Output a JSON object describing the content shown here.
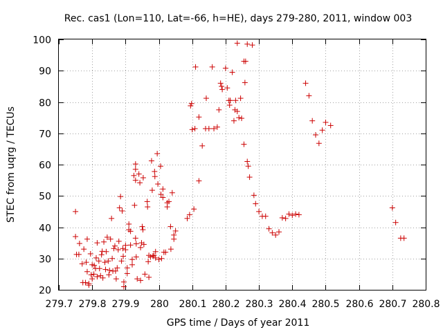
{
  "chart_data": {
    "type": "scatter",
    "title": "Rec. cas1 (Lon=110, Lat=-66, h=HE), days 279-280, 2011, window 003",
    "xlabel": "GPS time / Days of year 2011",
    "ylabel": "STEC from uqrg / TECUs",
    "xlim": [
      279.7,
      280.8
    ],
    "ylim": [
      20,
      100
    ],
    "xticks": [
      "279.7",
      "279.8",
      "279.9",
      "280",
      "280.1",
      "280.2",
      "280.3",
      "280.4",
      "280.5",
      "280.6",
      "280.7",
      "280.8"
    ],
    "yticks": [
      "20",
      "30",
      "40",
      "50",
      "60",
      "70",
      "80",
      "90",
      "100"
    ],
    "grid": true,
    "grid_style": "dotted",
    "marker": "plus",
    "color": "#cc0000",
    "series": [
      {
        "points": [
          [
            279.75,
            45.0
          ],
          [
            279.75,
            37.0
          ],
          [
            279.753,
            31.3
          ],
          [
            279.76,
            31.3
          ],
          [
            279.762,
            34.8
          ],
          [
            279.77,
            28.3
          ],
          [
            279.772,
            22.3
          ],
          [
            279.775,
            33.0
          ],
          [
            279.78,
            22.3
          ],
          [
            279.782,
            28.8
          ],
          [
            279.785,
            25.8
          ],
          [
            279.785,
            36.2
          ],
          [
            279.79,
            22.0
          ],
          [
            279.79,
            21.5
          ],
          [
            279.795,
            31.5
          ],
          [
            279.797,
            24.8
          ],
          [
            279.8,
            23.5
          ],
          [
            279.8,
            28.0
          ],
          [
            279.805,
            25.0
          ],
          [
            279.806,
            27.8
          ],
          [
            279.81,
            26.8
          ],
          [
            279.812,
            30.2
          ],
          [
            279.815,
            24.2
          ],
          [
            279.815,
            35.0
          ],
          [
            279.82,
            29.2
          ],
          [
            279.822,
            26.8
          ],
          [
            279.825,
            24.5
          ],
          [
            279.828,
            31.2
          ],
          [
            279.83,
            32.3
          ],
          [
            279.832,
            23.8
          ],
          [
            279.835,
            35.3
          ],
          [
            279.838,
            28.8
          ],
          [
            279.84,
            26.5
          ],
          [
            279.842,
            32.2
          ],
          [
            279.845,
            36.8
          ],
          [
            279.848,
            29.2
          ],
          [
            279.85,
            24.8
          ],
          [
            279.852,
            26.2
          ],
          [
            279.855,
            36.2
          ],
          [
            279.858,
            42.8
          ],
          [
            279.86,
            30.0
          ],
          [
            279.862,
            26.0
          ],
          [
            279.865,
            33.2
          ],
          [
            279.868,
            34.0
          ],
          [
            279.87,
            26.0
          ],
          [
            279.872,
            23.5
          ],
          [
            279.875,
            27.0
          ],
          [
            279.878,
            32.8
          ],
          [
            279.88,
            35.5
          ],
          [
            279.882,
            46.2
          ],
          [
            279.885,
            49.8
          ],
          [
            279.888,
            29.2
          ],
          [
            279.89,
            45.2
          ],
          [
            279.892,
            33.2
          ],
          [
            279.893,
            30.7
          ],
          [
            279.895,
            22.5
          ],
          [
            279.895,
            21.0
          ],
          [
            279.9,
            34.2
          ],
          [
            279.9,
            32.8
          ],
          [
            279.905,
            27.0
          ],
          [
            279.905,
            25.2
          ],
          [
            279.91,
            41.0
          ],
          [
            279.91,
            39.2
          ],
          [
            279.915,
            38.7
          ],
          [
            279.915,
            34.3
          ],
          [
            279.92,
            29.7
          ],
          [
            279.92,
            28.0
          ],
          [
            279.925,
            56.5
          ],
          [
            279.927,
            47.0
          ],
          [
            279.93,
            60.2
          ],
          [
            279.93,
            58.5
          ],
          [
            279.93,
            55.0
          ],
          [
            279.93,
            36.5
          ],
          [
            279.932,
            34.7
          ],
          [
            279.932,
            30.5
          ],
          [
            279.935,
            23.5
          ],
          [
            279.94,
            57.0
          ],
          [
            279.943,
            54.2
          ],
          [
            279.945,
            33.5
          ],
          [
            279.945,
            23.0
          ],
          [
            279.948,
            35.0
          ],
          [
            279.95,
            40.2
          ],
          [
            279.952,
            39.2
          ],
          [
            279.953,
            55.8
          ],
          [
            279.955,
            34.5
          ],
          [
            279.958,
            25.0
          ],
          [
            279.965,
            48.2
          ],
          [
            279.966,
            46.5
          ],
          [
            279.968,
            29.0
          ],
          [
            279.97,
            24.0
          ],
          [
            279.97,
            31.0
          ],
          [
            279.975,
            30.5
          ],
          [
            279.978,
            61.2
          ],
          [
            279.98,
            51.8
          ],
          [
            279.982,
            30.8
          ],
          [
            279.985,
            31.0
          ],
          [
            279.987,
            57.8
          ],
          [
            279.988,
            56.2
          ],
          [
            279.99,
            32.2
          ],
          [
            279.99,
            30.2
          ],
          [
            279.995,
            63.5
          ],
          [
            279.997,
            53.8
          ],
          [
            280.0,
            29.7
          ],
          [
            280.005,
            59.5
          ],
          [
            280.006,
            50.5
          ],
          [
            280.008,
            30.0
          ],
          [
            280.012,
            52.2
          ],
          [
            280.012,
            49.5
          ],
          [
            280.015,
            32.0
          ],
          [
            280.02,
            32.0
          ],
          [
            280.025,
            47.8
          ],
          [
            280.025,
            46.5
          ],
          [
            280.03,
            48.2
          ],
          [
            280.035,
            40.2
          ],
          [
            280.036,
            33.0
          ],
          [
            280.04,
            51.0
          ],
          [
            280.045,
            37.5
          ],
          [
            280.045,
            36.2
          ],
          [
            280.05,
            38.8
          ],
          [
            280.085,
            42.8
          ],
          [
            280.092,
            44.0
          ],
          [
            280.095,
            78.8
          ],
          [
            280.098,
            79.5
          ],
          [
            280.1,
            71.2
          ],
          [
            280.105,
            45.8
          ],
          [
            280.108,
            71.5
          ],
          [
            280.11,
            91.2
          ],
          [
            280.12,
            75.2
          ],
          [
            280.12,
            54.8
          ],
          [
            280.13,
            66.0
          ],
          [
            280.14,
            71.5
          ],
          [
            280.142,
            81.2
          ],
          [
            280.15,
            71.5
          ],
          [
            280.16,
            91.2
          ],
          [
            280.165,
            71.5
          ],
          [
            280.175,
            72.0
          ],
          [
            280.18,
            77.5
          ],
          [
            280.185,
            86.0
          ],
          [
            280.188,
            85.0
          ],
          [
            280.19,
            84.0
          ],
          [
            280.2,
            90.8
          ],
          [
            280.205,
            84.5
          ],
          [
            280.21,
            80.5
          ],
          [
            280.212,
            79.0
          ],
          [
            280.214,
            80.5
          ],
          [
            280.22,
            89.5
          ],
          [
            280.225,
            74.0
          ],
          [
            280.228,
            77.5
          ],
          [
            280.235,
            77.0
          ],
          [
            280.24,
            75.0
          ],
          [
            280.245,
            81.2
          ],
          [
            280.248,
            74.8
          ],
          [
            280.255,
            66.5
          ],
          [
            280.258,
            86.2
          ],
          [
            280.26,
            93.0
          ],
          [
            280.265,
            61.0
          ],
          [
            280.268,
            59.5
          ],
          [
            280.272,
            56.0
          ],
          [
            280.28,
            98.2
          ],
          [
            280.285,
            50.2
          ],
          [
            280.29,
            47.5
          ],
          [
            280.3,
            45.0
          ],
          [
            280.31,
            43.5
          ],
          [
            280.32,
            43.5
          ],
          [
            280.33,
            39.5
          ],
          [
            280.34,
            38.2
          ],
          [
            280.35,
            37.5
          ],
          [
            280.36,
            38.5
          ],
          [
            280.37,
            43.0
          ],
          [
            280.38,
            42.8
          ],
          [
            280.39,
            44.2
          ],
          [
            280.4,
            43.8
          ],
          [
            280.41,
            44.2
          ],
          [
            280.42,
            44.0
          ],
          [
            280.44,
            86.0
          ],
          [
            280.45,
            82.0
          ],
          [
            280.46,
            74.0
          ],
          [
            280.47,
            69.5
          ],
          [
            280.48,
            66.8
          ],
          [
            280.49,
            71.0
          ],
          [
            280.5,
            73.5
          ],
          [
            280.515,
            72.5
          ],
          [
            280.7,
            46.2
          ],
          [
            280.71,
            41.5
          ],
          [
            280.725,
            36.5
          ],
          [
            280.735,
            36.5
          ],
          [
            280.23,
            80.5
          ],
          [
            280.235,
            98.8
          ],
          [
            280.255,
            93.0
          ],
          [
            280.265,
            98.5
          ]
        ]
      }
    ]
  }
}
